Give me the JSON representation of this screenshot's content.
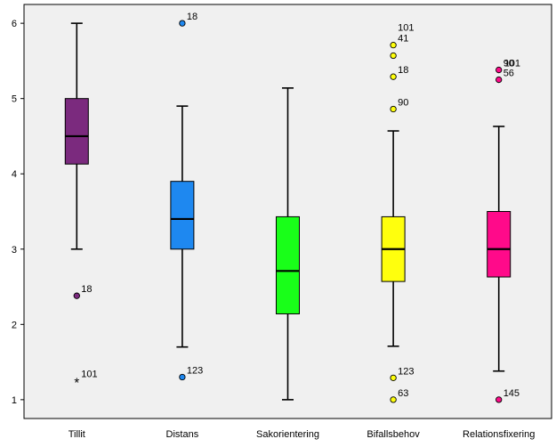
{
  "chart_data": {
    "type": "box",
    "title": "",
    "xlabel": "",
    "ylabel": "",
    "ylim": [
      0.75,
      6.25
    ],
    "yticks": [
      1,
      2,
      3,
      4,
      5,
      6
    ],
    "ytick_labels": [
      "1",
      "2",
      "3",
      "4",
      "5",
      "6"
    ],
    "categories": [
      "Tillit",
      "Distans",
      "Sakorientering",
      "Bifallsbehov",
      "Relationsfixering"
    ],
    "boxes": [
      {
        "whisker_low": 3.0,
        "q1": 4.13,
        "median": 4.5,
        "q3": 5.0,
        "whisker_high": 6.0,
        "color": "#7b2a7e",
        "outliers": [
          {
            "value": 2.38,
            "marker": "circle",
            "label": "18"
          },
          {
            "value": 1.25,
            "marker": "star",
            "label": "101"
          }
        ]
      },
      {
        "whisker_low": 1.7,
        "q1": 3.0,
        "median": 3.4,
        "q3": 3.9,
        "whisker_high": 4.9,
        "color": "#1e88f0",
        "outliers": [
          {
            "value": 6.0,
            "marker": "circle",
            "label": "18"
          },
          {
            "value": 1.3,
            "marker": "circle",
            "label": "123"
          }
        ]
      },
      {
        "whisker_low": 1.0,
        "q1": 2.14,
        "median": 2.71,
        "q3": 3.43,
        "whisker_high": 5.14,
        "color": "#19ff19",
        "outliers": []
      },
      {
        "whisker_low": 1.71,
        "q1": 2.57,
        "median": 3.0,
        "q3": 3.43,
        "whisker_high": 4.57,
        "color": "#ffff0d",
        "outliers": [
          {
            "value": 5.71,
            "marker": "circle",
            "label": "41"
          },
          {
            "value": 5.57,
            "marker": "circle",
            "label": ""
          },
          {
            "value": 5.29,
            "marker": "circle",
            "label": "18"
          },
          {
            "value": 4.86,
            "marker": "circle",
            "label": "90"
          },
          {
            "value": 1.29,
            "marker": "circle",
            "label": "123"
          },
          {
            "value": 1.0,
            "marker": "circle",
            "label": "63"
          }
        ]
      },
      {
        "whisker_low": 1.38,
        "q1": 2.63,
        "median": 3.0,
        "q3": 3.5,
        "whisker_high": 4.63,
        "color": "#ff0a8a",
        "outliers": [
          {
            "value": 5.38,
            "marker": "circle",
            "label": "90"
          },
          {
            "value": 5.25,
            "marker": "circle",
            "label": "56"
          },
          {
            "value": 1.0,
            "marker": "circle",
            "label": "145"
          }
        ]
      }
    ],
    "annotations": [
      {
        "category": "Bifallsbehov",
        "value": 5.71,
        "label": "101",
        "position": "above"
      },
      {
        "category": "Relationsfixering",
        "value": 5.38,
        "label": "101",
        "position": "right"
      }
    ],
    "grid": false,
    "background_color": "#f0f0f0"
  }
}
